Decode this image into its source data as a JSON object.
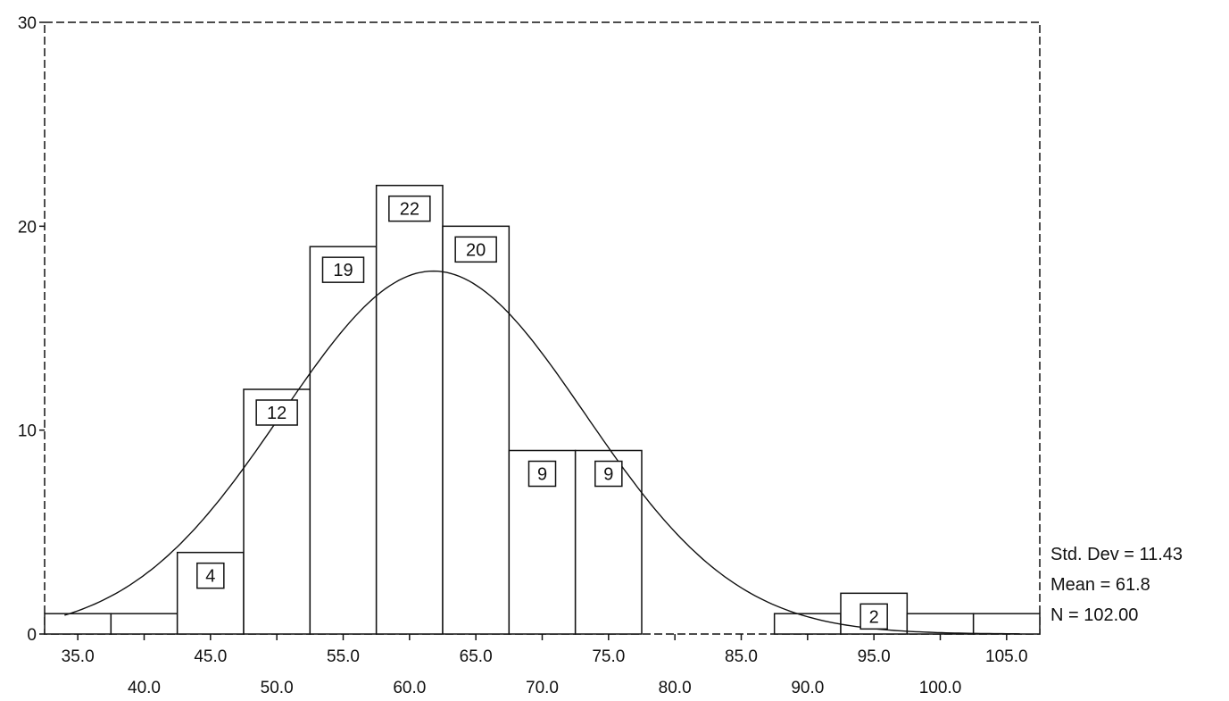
{
  "chart_data": {
    "type": "bar",
    "subtype": "histogram",
    "title": "",
    "xlabel": "",
    "ylabel": "",
    "ylim": [
      0,
      30
    ],
    "xlim": [
      32.5,
      107.5
    ],
    "y_ticks": [
      "0",
      "10",
      "20",
      "30"
    ],
    "x_ticks": [
      "35.0",
      "40.0",
      "45.0",
      "50.0",
      "55.0",
      "60.0",
      "65.0",
      "70.0",
      "75.0",
      "80.0",
      "85.0",
      "90.0",
      "95.0",
      "100.0",
      "105.0"
    ],
    "bin_width": 5,
    "bins": [
      {
        "center": 35,
        "count": 1,
        "label": ""
      },
      {
        "center": 40,
        "count": 1,
        "label": ""
      },
      {
        "center": 45,
        "count": 4,
        "label": "4"
      },
      {
        "center": 50,
        "count": 12,
        "label": "12"
      },
      {
        "center": 55,
        "count": 19,
        "label": "19"
      },
      {
        "center": 60,
        "count": 22,
        "label": "22"
      },
      {
        "center": 65,
        "count": 20,
        "label": "20"
      },
      {
        "center": 70,
        "count": 9,
        "label": "9"
      },
      {
        "center": 75,
        "count": 9,
        "label": "9"
      },
      {
        "center": 80,
        "count": 0,
        "label": ""
      },
      {
        "center": 85,
        "count": 0,
        "label": ""
      },
      {
        "center": 90,
        "count": 1,
        "label": ""
      },
      {
        "center": 95,
        "count": 2,
        "label": "2"
      },
      {
        "center": 100,
        "count": 1,
        "label": ""
      },
      {
        "center": 105,
        "count": 1,
        "label": ""
      }
    ],
    "normal_curve": {
      "mean": 61.8,
      "std_dev": 11.43,
      "n": 102
    },
    "legend_position": "bottom-right",
    "grid": false
  },
  "stats": {
    "std_dev": "Std. Dev = 11.43",
    "mean": "Mean = 61.8",
    "n": "N = 102.00"
  }
}
